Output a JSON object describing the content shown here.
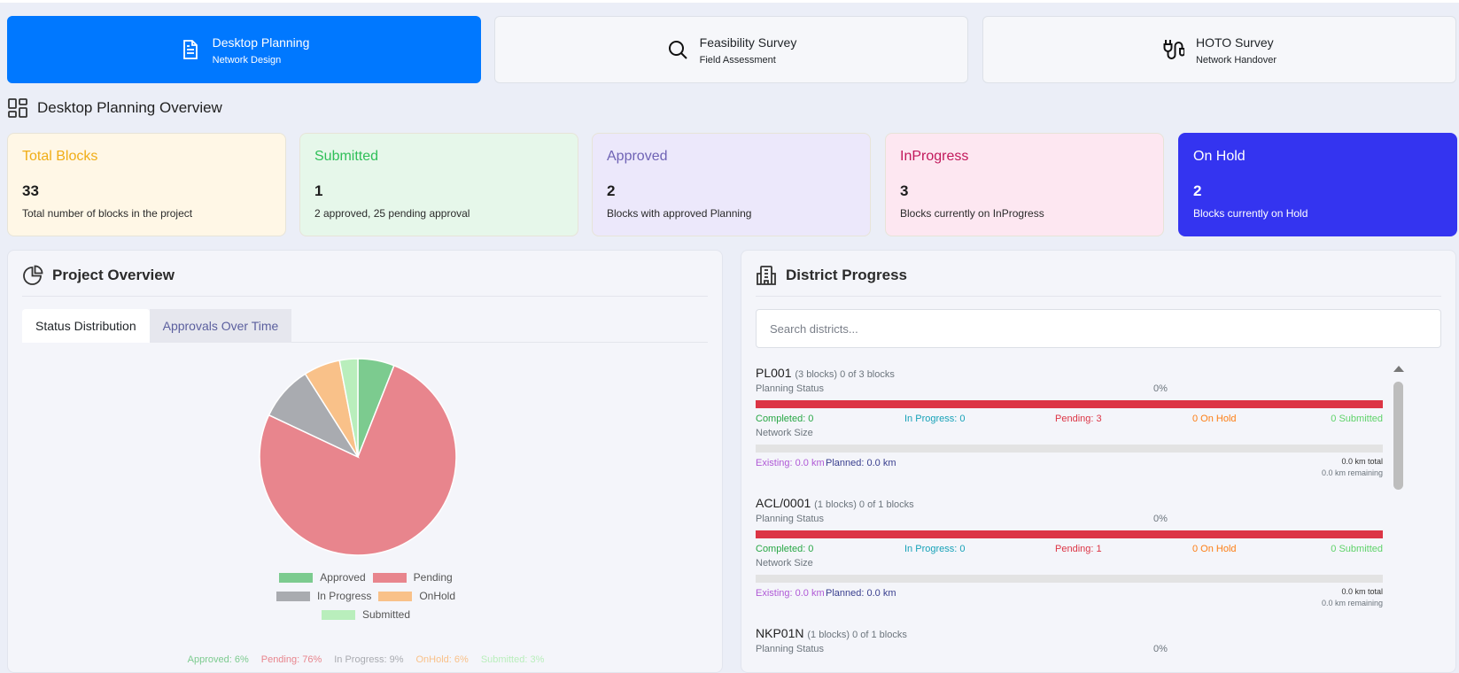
{
  "modules": [
    {
      "title": "Desktop Planning",
      "subtitle": "Network Design",
      "icon": "document-icon",
      "active": true
    },
    {
      "title": "Feasibility Survey",
      "subtitle": "Field Assessment",
      "icon": "search-icon",
      "active": false
    },
    {
      "title": "HOTO Survey",
      "subtitle": "Network Handover",
      "icon": "plug-icon",
      "active": false
    }
  ],
  "overview_title": "Desktop Planning Overview",
  "stats": [
    {
      "title": "Total Blocks",
      "value": "33",
      "desc": "Total number of blocks in the project",
      "bg": "#fff7e6",
      "color": "#f0ad16"
    },
    {
      "title": "Submitted",
      "value": "1",
      "desc": "2 approved, 25 pending approval",
      "bg": "#e6f7ea",
      "color": "#2fbf58"
    },
    {
      "title": "Approved",
      "value": "2",
      "desc": "Blocks with approved Planning",
      "bg": "#ece8fb",
      "color": "#6f63b5"
    },
    {
      "title": "InProgress",
      "value": "3",
      "desc": "Blocks currently on InProgress",
      "bg": "#fde7f1",
      "color": "#c2185b"
    },
    {
      "title": "On Hold",
      "value": "2",
      "desc": "Blocks currently on Hold",
      "bg": "#3434f0",
      "color": "#ffffff"
    }
  ],
  "project_overview": {
    "title": "Project Overview",
    "tabs": [
      "Status Distribution",
      "Approvals Over Time"
    ]
  },
  "chart_data": {
    "type": "pie",
    "labels": [
      "Approved",
      "Pending",
      "In Progress",
      "OnHold",
      "Submitted"
    ],
    "values": [
      6,
      76,
      9,
      6,
      3
    ],
    "colors": [
      "#7ccb8f",
      "#e8858d",
      "#a9abb0",
      "#f9c189",
      "#b9eebc"
    ],
    "percent_labels": [
      "Approved: 6%",
      "Pending: 76%",
      "In Progress: 9%",
      "OnHold: 6%",
      "Submitted: 3%"
    ]
  },
  "district_progress": {
    "title": "District Progress",
    "search_placeholder": "Search districts...",
    "items": [
      {
        "name": "PL001",
        "meta": "(3 blocks) 0 of 3 blocks",
        "status_label": "Planning Status",
        "pct": "0%",
        "completed": "Completed: 0",
        "in_progress": "In Progress: 0",
        "pending": "Pending: 3",
        "on_hold": "0 On Hold",
        "submitted": "0 Submitted",
        "network_label": "Network Size",
        "existing": "Existing: 0.0 km",
        "planned": "Planned: 0.0 km",
        "total": "0.0 km total",
        "remaining": "0.0 km remaining"
      },
      {
        "name": "ACL/0001",
        "meta": "(1 blocks) 0 of 1 blocks",
        "status_label": "Planning Status",
        "pct": "0%",
        "completed": "Completed: 0",
        "in_progress": "In Progress: 0",
        "pending": "Pending: 1",
        "on_hold": "0 On Hold",
        "submitted": "0 Submitted",
        "network_label": "Network Size",
        "existing": "Existing: 0.0 km",
        "planned": "Planned: 0.0 km",
        "total": "0.0 km total",
        "remaining": "0.0 km remaining"
      },
      {
        "name": "NKP01N",
        "meta": "(1 blocks) 0 of 1 blocks",
        "status_label": "Planning Status",
        "pct": "0%"
      }
    ]
  }
}
